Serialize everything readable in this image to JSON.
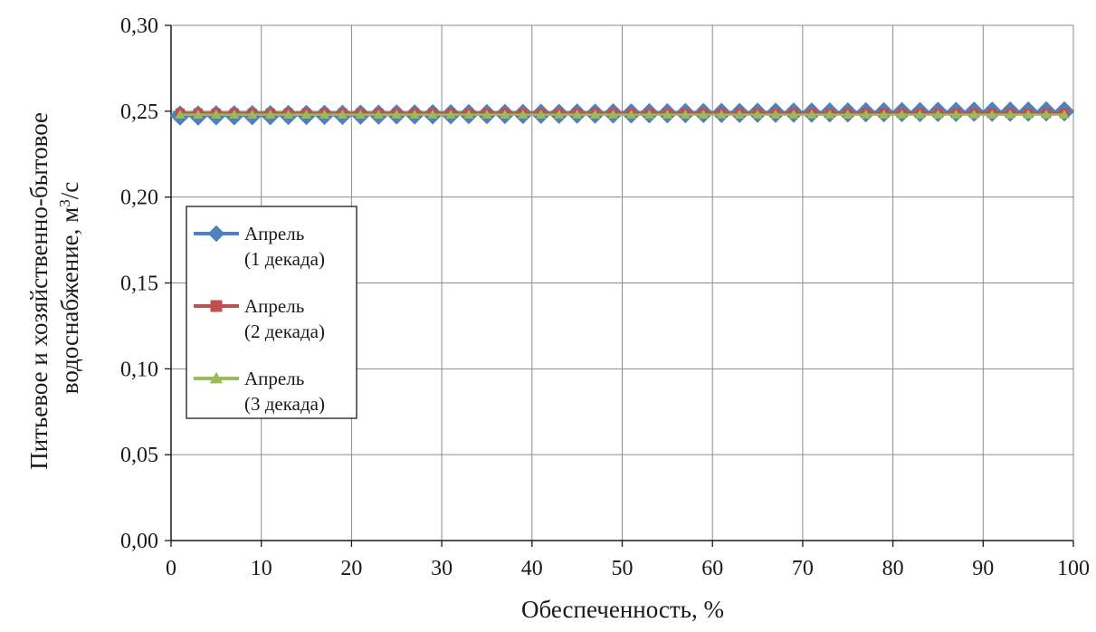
{
  "chart_data": {
    "type": "line",
    "title": "",
    "xlabel": "Обеспеченность, %",
    "ylabel": {
      "line1": "Питьевое и хозяйственно-бытовое",
      "line2_prefix": "водоснабжение, м",
      "line2_sup": "3",
      "line2_suffix": "/с"
    },
    "xlim": [
      0,
      100
    ],
    "ylim": [
      0,
      0.3
    ],
    "x_ticks": [
      "0",
      "10",
      "20",
      "30",
      "40",
      "50",
      "60",
      "70",
      "80",
      "90",
      "100"
    ],
    "y_ticks": [
      "0,00",
      "0,05",
      "0,10",
      "0,15",
      "0,20",
      "0,25",
      "0,30"
    ],
    "grid": true,
    "legend_position": "left",
    "x": [
      1,
      3,
      5,
      7,
      9,
      11,
      13,
      15,
      17,
      19,
      21,
      23,
      25,
      27,
      29,
      31,
      33,
      35,
      37,
      39,
      41,
      43,
      45,
      47,
      49,
      51,
      53,
      55,
      57,
      59,
      61,
      63,
      65,
      67,
      69,
      71,
      73,
      75,
      77,
      79,
      81,
      83,
      85,
      87,
      89,
      91,
      93,
      95,
      97,
      99
    ],
    "series": [
      {
        "name": "Апрель (1 декада)",
        "name_lines": [
          "Апрель",
          "(1 декада)"
        ],
        "color": "#4f81bd",
        "marker": "diamond",
        "values": [
          0.2475,
          0.2475,
          0.2476,
          0.2476,
          0.2477,
          0.2477,
          0.2478,
          0.2478,
          0.2479,
          0.2479,
          0.248,
          0.248,
          0.2481,
          0.2481,
          0.2482,
          0.2482,
          0.2483,
          0.2483,
          0.2484,
          0.2484,
          0.2485,
          0.2485,
          0.2486,
          0.2486,
          0.2487,
          0.2487,
          0.2488,
          0.2488,
          0.2489,
          0.2489,
          0.249,
          0.249,
          0.2491,
          0.2491,
          0.2492,
          0.2492,
          0.2493,
          0.2493,
          0.2494,
          0.2494,
          0.2495,
          0.2495,
          0.2496,
          0.2496,
          0.2497,
          0.2497,
          0.2498,
          0.2498,
          0.2499,
          0.2499
        ]
      },
      {
        "name": "Апрель (2 декада)",
        "name_lines": [
          "Апрель",
          "(2 декада)"
        ],
        "color": "#c0504d",
        "marker": "square",
        "values": [
          0.249,
          0.249,
          0.249,
          0.249,
          0.249,
          0.249,
          0.249,
          0.249,
          0.249,
          0.249,
          0.249,
          0.249,
          0.249,
          0.249,
          0.249,
          0.249,
          0.249,
          0.249,
          0.249,
          0.249,
          0.249,
          0.249,
          0.249,
          0.249,
          0.249,
          0.249,
          0.249,
          0.249,
          0.249,
          0.249,
          0.249,
          0.249,
          0.249,
          0.249,
          0.249,
          0.249,
          0.249,
          0.249,
          0.249,
          0.249,
          0.249,
          0.249,
          0.249,
          0.249,
          0.249,
          0.249,
          0.249,
          0.249,
          0.249,
          0.249
        ]
      },
      {
        "name": "Апрель (3 декада)",
        "name_lines": [
          "Апрель",
          "(3 декада)"
        ],
        "color": "#9bbb59",
        "marker": "triangle",
        "values": [
          0.248,
          0.248,
          0.248,
          0.248,
          0.248,
          0.248,
          0.248,
          0.248,
          0.248,
          0.248,
          0.248,
          0.248,
          0.248,
          0.248,
          0.248,
          0.248,
          0.248,
          0.248,
          0.248,
          0.248,
          0.248,
          0.248,
          0.248,
          0.248,
          0.248,
          0.248,
          0.248,
          0.248,
          0.248,
          0.248,
          0.248,
          0.248,
          0.248,
          0.248,
          0.248,
          0.248,
          0.248,
          0.248,
          0.248,
          0.248,
          0.248,
          0.248,
          0.248,
          0.248,
          0.248,
          0.248,
          0.248,
          0.248,
          0.248,
          0.248
        ]
      }
    ]
  }
}
